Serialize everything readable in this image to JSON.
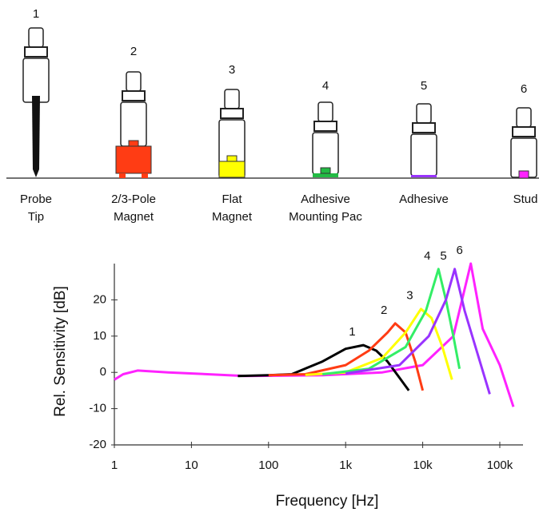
{
  "mounts": [
    {
      "number": "1",
      "label": [
        "Probe",
        "Tip"
      ]
    },
    {
      "number": "2",
      "label": [
        "2/3-Pole",
        "Magnet"
      ]
    },
    {
      "number": "3",
      "label": [
        "Flat",
        "Magnet"
      ]
    },
    {
      "number": "4",
      "label": [
        "Adhesive",
        "Mounting Pac"
      ]
    },
    {
      "number": "5",
      "label": [
        "Adhesive"
      ]
    },
    {
      "number": "6",
      "label": [
        "Stud"
      ]
    }
  ],
  "chart_data": {
    "type": "line",
    "xlabel": "Frequency [Hz]",
    "ylabel": "Rel. Sensitivity [dB]",
    "xscale": "log",
    "xlim": [
      1,
      200000
    ],
    "ylim": [
      -20,
      30
    ],
    "xticks": [
      1,
      10,
      100,
      {
        "value": 1000,
        "label": "1k"
      },
      {
        "value": 10000,
        "label": "10k"
      },
      {
        "value": 100000,
        "label": "100k"
      }
    ],
    "yticks": [
      -20,
      -10,
      0,
      10,
      20
    ],
    "series": [
      {
        "name": "1",
        "color": "#000000",
        "x": [
          40,
          100,
          200,
          500,
          1000,
          1700,
          2500,
          3500,
          5000,
          6600
        ],
        "values": [
          -1,
          -0.8,
          -0.5,
          3,
          6.5,
          7.5,
          6,
          3,
          -1.5,
          -5
        ]
      },
      {
        "name": "2",
        "color": "#ff3c14",
        "x": [
          100,
          300,
          1000,
          2000,
          3500,
          4400,
          6000,
          8000,
          10000
        ],
        "values": [
          -0.8,
          -0.5,
          2,
          6,
          11,
          13.5,
          11,
          3,
          -5
        ]
      },
      {
        "name": "3",
        "color": "#ffff00",
        "x": [
          300,
          1000,
          3000,
          6000,
          9500,
          13000,
          18000,
          24000
        ],
        "values": [
          -0.7,
          0,
          4,
          11,
          17.5,
          15,
          7,
          -2
        ]
      },
      {
        "name": "4",
        "color": "#33ee66",
        "x": [
          500,
          2000,
          6000,
          11000,
          16000,
          20000,
          25000,
          30000
        ],
        "values": [
          -0.5,
          1,
          7,
          17,
          28.5,
          20,
          10,
          1
        ]
      },
      {
        "name": "5",
        "color": "#9933ff",
        "x": [
          1000,
          5000,
          12000,
          20000,
          26000,
          35000,
          50000,
          74000
        ],
        "values": [
          -0.3,
          2,
          10,
          20,
          28.5,
          17,
          6,
          -6
        ]
      },
      {
        "name": "6",
        "color": "#ff22ff",
        "x": [
          1,
          1.3,
          2,
          5,
          50,
          500,
          3000,
          10000,
          25000,
          42000,
          60000,
          100000,
          150000
        ],
        "values": [
          -2,
          -0.5,
          0.5,
          0,
          -1,
          -0.8,
          0,
          2,
          10,
          30,
          12,
          2,
          -9.5
        ]
      }
    ]
  }
}
